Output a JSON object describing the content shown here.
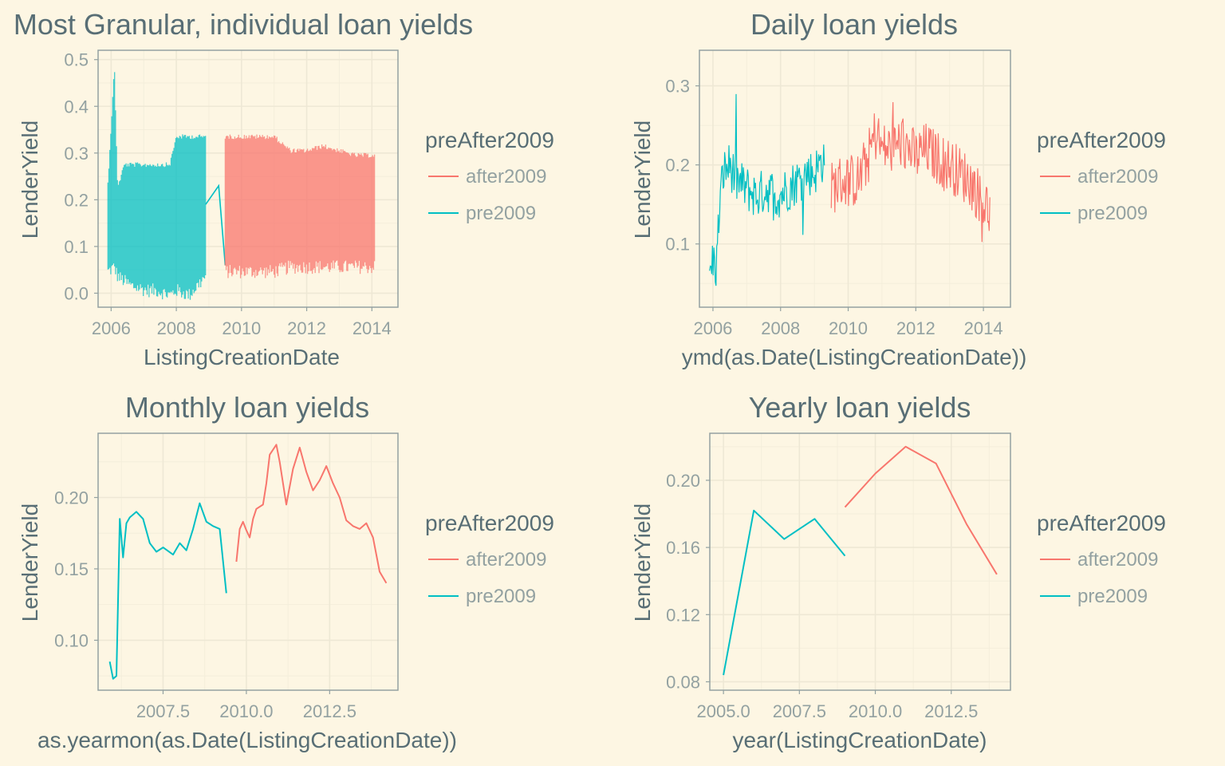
{
  "colors": {
    "background": "#fdf6e3",
    "after2009": "#f8766d",
    "pre2009": "#00bfc4",
    "text": "#586e75",
    "tick": "#93a1a1",
    "grid": "#eee8d5"
  },
  "chart_data": [
    {
      "type": "line",
      "title": "Most Granular, individual loan yields",
      "xlabel": "ListingCreationDate",
      "ylabel": "LenderYield",
      "x_ticks": [
        "2006",
        "2008",
        "2010",
        "2012",
        "2014"
      ],
      "y_ticks": [
        "0.0",
        "0.1",
        "0.2",
        "0.3",
        "0.4",
        "0.5"
      ],
      "xlim": [
        2005.6,
        2014.8
      ],
      "ylim": [
        -0.03,
        0.52
      ],
      "grid": true,
      "legend": {
        "title": "preAfter2009",
        "placement": "right",
        "entries": [
          "after2009",
          "pre2009"
        ]
      },
      "series": [
        {
          "name": "pre2009",
          "color": "#00bfc4",
          "opacity": 0.75,
          "style": "band",
          "x": [
            2005.9,
            2006.1,
            2006.2,
            2006.4,
            2006.6,
            2007.1,
            2007.4,
            2007.8,
            2008.0,
            2008.4,
            2008.9
          ],
          "low": [
            0.04,
            0.05,
            0.03,
            0.02,
            0.01,
            0.0,
            0.0,
            -0.01,
            0.0,
            -0.01,
            0.03
          ],
          "high": [
            0.24,
            0.49,
            0.23,
            0.28,
            0.28,
            0.28,
            0.28,
            0.28,
            0.34,
            0.34,
            0.34
          ],
          "tail_x": [
            2008.9,
            2009.3,
            2009.5
          ],
          "tail_y": [
            0.19,
            0.23,
            0.06
          ]
        },
        {
          "name": "after2009",
          "color": "#f8766d",
          "opacity": 0.75,
          "style": "band",
          "x": [
            2009.5,
            2010.0,
            2010.5,
            2011.0,
            2011.5,
            2012.0,
            2012.5,
            2013.0,
            2013.5,
            2014.1
          ],
          "low": [
            0.04,
            0.04,
            0.04,
            0.04,
            0.05,
            0.05,
            0.05,
            0.05,
            0.05,
            0.05
          ],
          "high": [
            0.34,
            0.34,
            0.34,
            0.34,
            0.31,
            0.31,
            0.32,
            0.31,
            0.3,
            0.3
          ]
        }
      ]
    },
    {
      "type": "line",
      "title": "Daily loan yields",
      "xlabel": "ymd(as.Date(ListingCreationDate))",
      "ylabel": "LenderYield",
      "x_ticks": [
        "2006",
        "2008",
        "2010",
        "2012",
        "2014"
      ],
      "y_ticks": [
        "0.1",
        "0.2",
        "0.3"
      ],
      "xlim": [
        2005.6,
        2014.8
      ],
      "ylim": [
        0.02,
        0.345
      ],
      "grid": true,
      "legend": {
        "title": "preAfter2009",
        "placement": "right",
        "entries": [
          "after2009",
          "pre2009"
        ]
      },
      "series": [
        {
          "name": "pre2009",
          "color": "#00bfc4",
          "style": "noisy",
          "x": [
            2005.9,
            2006.0,
            2006.1,
            2006.2,
            2006.3,
            2006.5,
            2006.7,
            2007.0,
            2007.3,
            2007.6,
            2007.9,
            2008.2,
            2008.5,
            2008.8,
            2009.0,
            2009.3
          ],
          "y": [
            0.06,
            0.08,
            0.07,
            0.15,
            0.19,
            0.2,
            0.18,
            0.17,
            0.16,
            0.17,
            0.16,
            0.17,
            0.18,
            0.19,
            0.19,
            0.21
          ],
          "noise": 0.03
        },
        {
          "name": "after2009",
          "color": "#f8766d",
          "style": "noisy",
          "x": [
            2009.5,
            2009.8,
            2010.0,
            2010.3,
            2010.6,
            2010.8,
            2011.0,
            2011.3,
            2011.6,
            2012.0,
            2012.3,
            2012.6,
            2013.0,
            2013.3,
            2013.6,
            2013.9,
            2014.2
          ],
          "y": [
            0.17,
            0.18,
            0.18,
            0.18,
            0.21,
            0.24,
            0.22,
            0.22,
            0.23,
            0.21,
            0.22,
            0.21,
            0.2,
            0.19,
            0.18,
            0.16,
            0.14
          ],
          "noise": 0.035
        }
      ]
    },
    {
      "type": "line",
      "title": "Monthly loan yields",
      "xlabel": "as.yearmon(as.Date(ListingCreationDate))",
      "ylabel": "LenderYield",
      "x_ticks": [
        "2007.5",
        "2010.0",
        "2012.5"
      ],
      "y_ticks": [
        "0.10",
        "0.15",
        "0.20"
      ],
      "xlim": [
        2005.55,
        2014.55
      ],
      "ylim": [
        0.065,
        0.245
      ],
      "grid": true,
      "legend": {
        "title": "preAfter2009",
        "placement": "right",
        "entries": [
          "after2009",
          "pre2009"
        ]
      },
      "series": [
        {
          "name": "pre2009",
          "color": "#00bfc4",
          "style": "line",
          "x": [
            2005.9,
            2006.0,
            2006.1,
            2006.2,
            2006.3,
            2006.4,
            2006.5,
            2006.7,
            2006.9,
            2007.1,
            2007.3,
            2007.5,
            2007.8,
            2008.0,
            2008.2,
            2008.4,
            2008.6,
            2008.8,
            2009.0,
            2009.2,
            2009.4
          ],
          "y": [
            0.085,
            0.073,
            0.075,
            0.185,
            0.158,
            0.182,
            0.186,
            0.19,
            0.185,
            0.168,
            0.162,
            0.165,
            0.16,
            0.168,
            0.163,
            0.178,
            0.196,
            0.183,
            0.18,
            0.178,
            0.133
          ]
        },
        {
          "name": "after2009",
          "color": "#f8766d",
          "style": "line",
          "x": [
            2009.7,
            2009.8,
            2009.9,
            2010.0,
            2010.1,
            2010.2,
            2010.3,
            2010.5,
            2010.6,
            2010.7,
            2010.9,
            2011.0,
            2011.2,
            2011.4,
            2011.6,
            2011.8,
            2012.0,
            2012.2,
            2012.4,
            2012.6,
            2012.8,
            2013.0,
            2013.2,
            2013.4,
            2013.6,
            2013.8,
            2014.0,
            2014.2
          ],
          "y": [
            0.155,
            0.178,
            0.183,
            0.177,
            0.172,
            0.185,
            0.192,
            0.195,
            0.21,
            0.23,
            0.237,
            0.225,
            0.195,
            0.22,
            0.235,
            0.218,
            0.205,
            0.212,
            0.222,
            0.21,
            0.2,
            0.184,
            0.18,
            0.178,
            0.182,
            0.172,
            0.148,
            0.14
          ]
        }
      ]
    },
    {
      "type": "line",
      "title": "Yearly loan yields",
      "xlabel": "year(ListingCreationDate)",
      "ylabel": "LenderYield",
      "x_ticks": [
        "2005.0",
        "2007.5",
        "2010.0",
        "2012.5"
      ],
      "y_ticks": [
        "0.08",
        "0.12",
        "0.16",
        "0.20"
      ],
      "xlim": [
        2004.55,
        2014.45
      ],
      "ylim": [
        0.075,
        0.228
      ],
      "grid": true,
      "legend": {
        "title": "preAfter2009",
        "placement": "right",
        "entries": [
          "after2009",
          "pre2009"
        ]
      },
      "series": [
        {
          "name": "pre2009",
          "color": "#00bfc4",
          "style": "line",
          "x": [
            2005,
            2006,
            2007,
            2008,
            2009
          ],
          "y": [
            0.084,
            0.182,
            0.165,
            0.177,
            0.155
          ]
        },
        {
          "name": "after2009",
          "color": "#f8766d",
          "style": "line",
          "x": [
            2009,
            2010,
            2011,
            2012,
            2013,
            2014
          ],
          "y": [
            0.184,
            0.204,
            0.22,
            0.21,
            0.174,
            0.144
          ]
        }
      ]
    }
  ]
}
